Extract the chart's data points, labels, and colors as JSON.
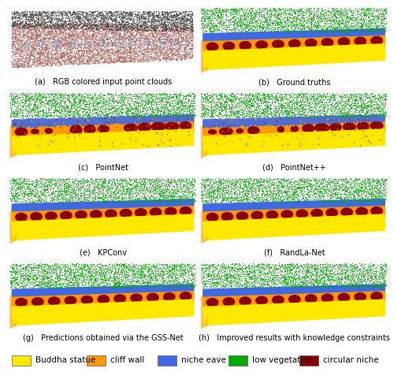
{
  "title": "",
  "figure_size": [
    5.0,
    4.86
  ],
  "dpi": 100,
  "panels": [
    {
      "label": "(a)   RGB colored input point clouds",
      "col": 0,
      "row": 0,
      "image": "a"
    },
    {
      "label": "(b)   Ground truths",
      "col": 1,
      "row": 0,
      "image": "b"
    },
    {
      "label": "(c)   PointNet",
      "col": 0,
      "row": 1,
      "image": "c"
    },
    {
      "label": "(d)   PointNet++",
      "col": 1,
      "row": 1,
      "image": "d"
    },
    {
      "label": "(e)   KPConv",
      "col": 0,
      "row": 2,
      "image": "e"
    },
    {
      "label": "(f)   RandLa-Net",
      "col": 1,
      "row": 2,
      "image": "f"
    },
    {
      "label": "(g)   Predictions obtained via the GSS-Net",
      "col": 0,
      "row": 3,
      "image": "g"
    },
    {
      "label": "(h)   Improved results with knowledge constraints",
      "col": 1,
      "row": 3,
      "image": "h"
    }
  ],
  "legend_items": [
    {
      "label": "Buddha statue",
      "color": "#FFE800"
    },
    {
      "label": "cliff wall",
      "color": "#FF9900"
    },
    {
      "label": "niche eave",
      "color": "#4169E1"
    },
    {
      "label": "low vegetation",
      "color": "#00AA00"
    },
    {
      "label": "circular niche",
      "color": "#8B0000"
    }
  ],
  "yellow": "#FFE800",
  "orange": "#FF9900",
  "blue": "#4169E1",
  "green": "#00AA00",
  "darkred": "#8B0000",
  "bg_color": "#FFFFFF",
  "label_fontsize": 7.0,
  "legend_fontsize": 7.5
}
